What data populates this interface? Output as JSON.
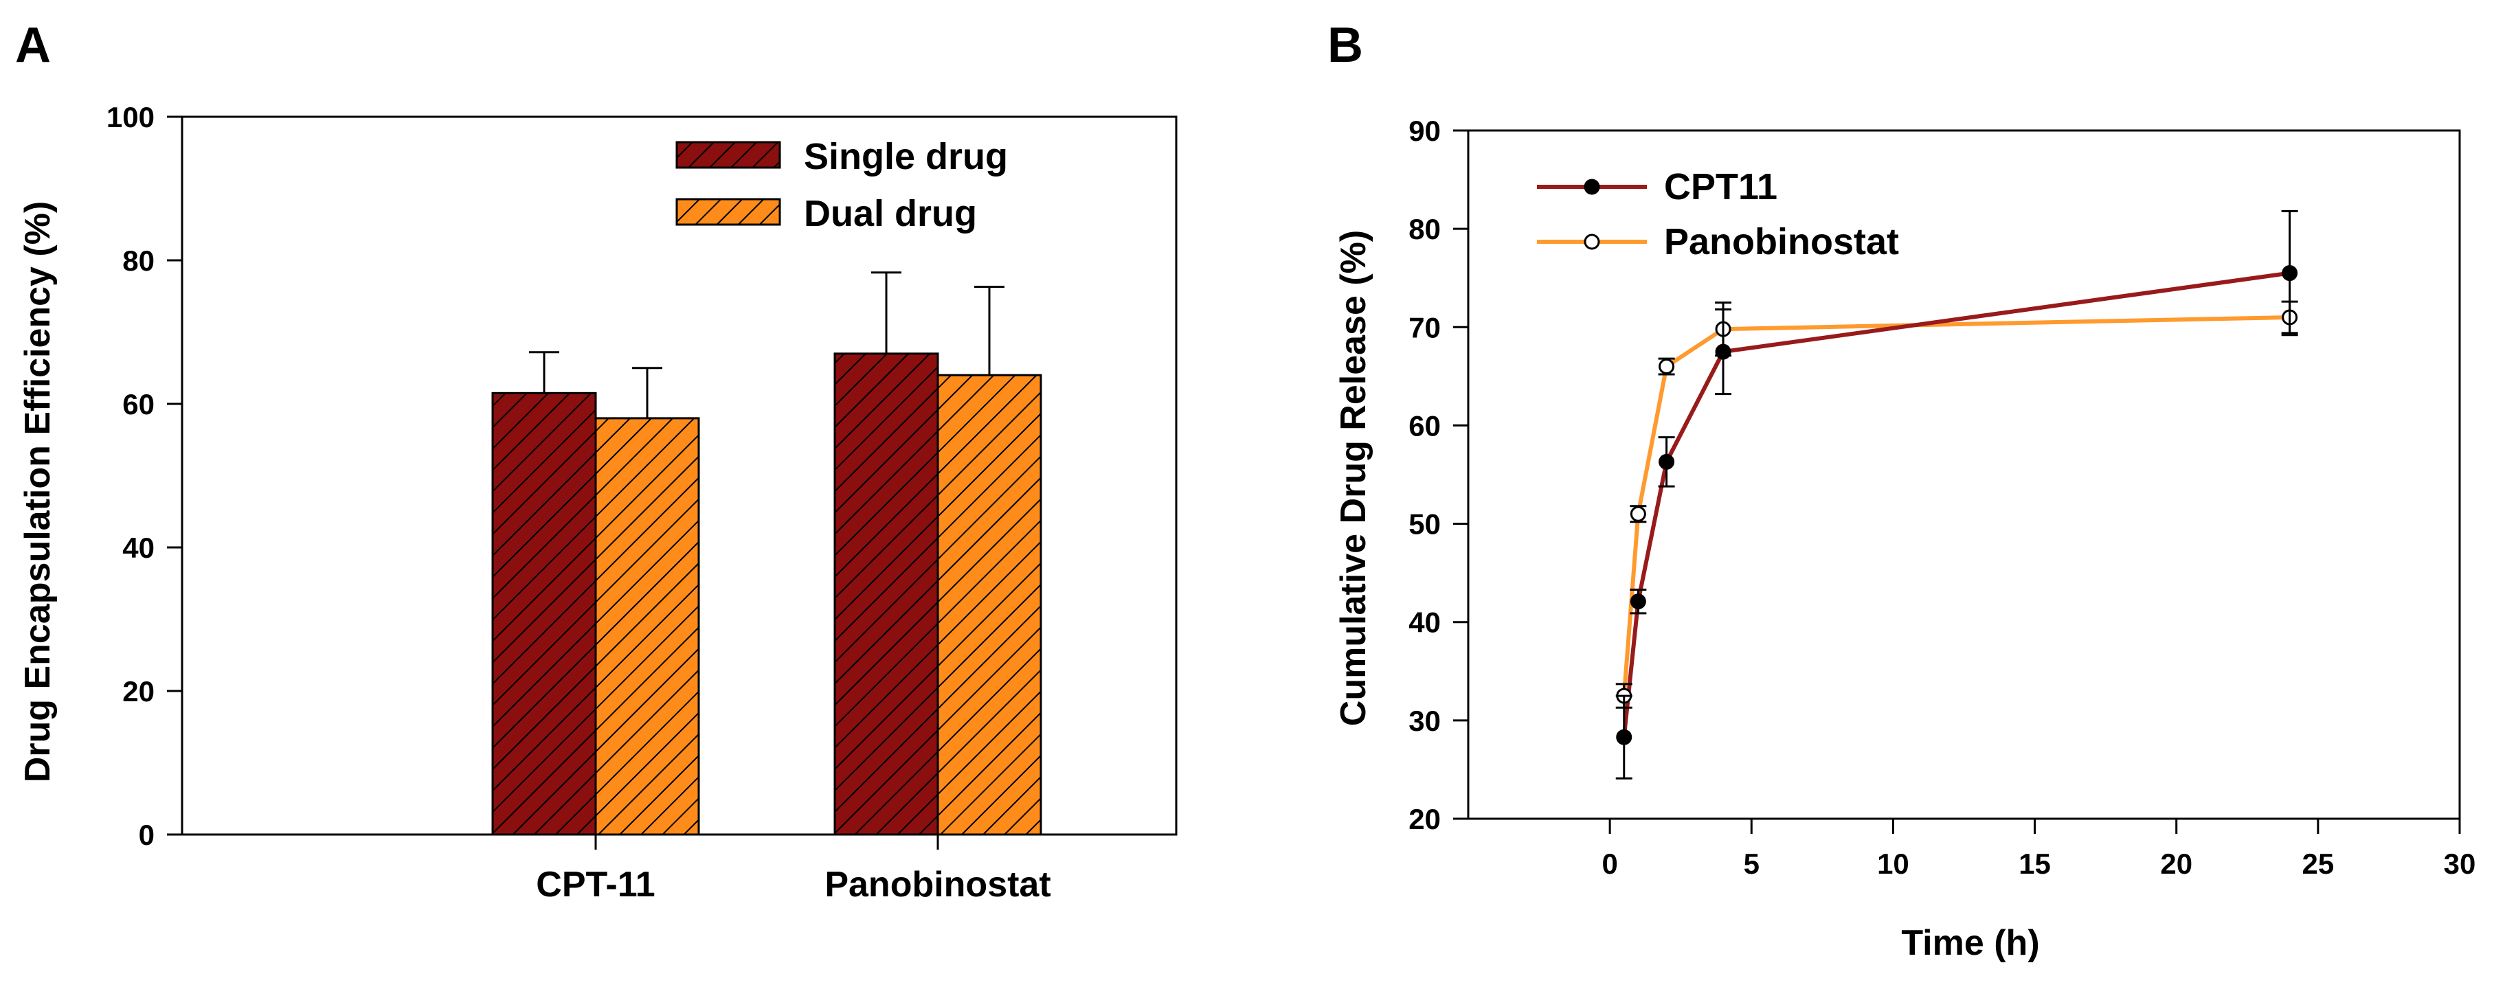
{
  "colors": {
    "single": "#8b0f0f",
    "dual": "#ff8c1a",
    "cpt11_line": "#991a1a",
    "pano_line": "#ff9a2e",
    "axis": "#000000"
  },
  "chart_data": [
    {
      "panel": "A",
      "type": "bar",
      "title": "",
      "xlabel": "",
      "ylabel": "Drug Encapsulation Efficiency (%)",
      "ylim": [
        0,
        100
      ],
      "yticks": [
        0,
        20,
        40,
        60,
        80,
        100
      ],
      "categories": [
        "CPT-11",
        "Panobinostat"
      ],
      "series": [
        {
          "name": "Single drug",
          "values": [
            61.5,
            67.0
          ],
          "errors": [
            5.7,
            11.3
          ]
        },
        {
          "name": "Dual drug",
          "values": [
            58.0,
            64.0
          ],
          "errors": [
            7.0,
            12.3
          ]
        }
      ],
      "legend_position": "top-right"
    },
    {
      "panel": "B",
      "type": "line",
      "title": "",
      "xlabel": "Time (h)",
      "ylabel": "Cumulative Drug Release (%)",
      "xlim": [
        -5,
        30
      ],
      "ylim": [
        20,
        90
      ],
      "xticks": [
        0,
        5,
        10,
        15,
        20,
        25,
        30
      ],
      "yticks": [
        20,
        30,
        40,
        50,
        60,
        70,
        80,
        90
      ],
      "series": [
        {
          "name": "CPT11",
          "marker": "filled-circle",
          "x": [
            0.5,
            1,
            2,
            4,
            24
          ],
          "y": [
            28.3,
            42.1,
            56.3,
            67.5,
            75.5
          ],
          "errors": [
            4.2,
            1.2,
            2.5,
            4.3,
            6.3
          ]
        },
        {
          "name": "Panobinostat",
          "marker": "open-circle",
          "x": [
            0.5,
            1,
            2,
            4,
            24
          ],
          "y": [
            32.5,
            51.0,
            66.0,
            69.8,
            71.0
          ],
          "errors": [
            1.2,
            0.8,
            0.8,
            2.7,
            1.6
          ]
        }
      ],
      "legend_position": "top-left"
    }
  ]
}
